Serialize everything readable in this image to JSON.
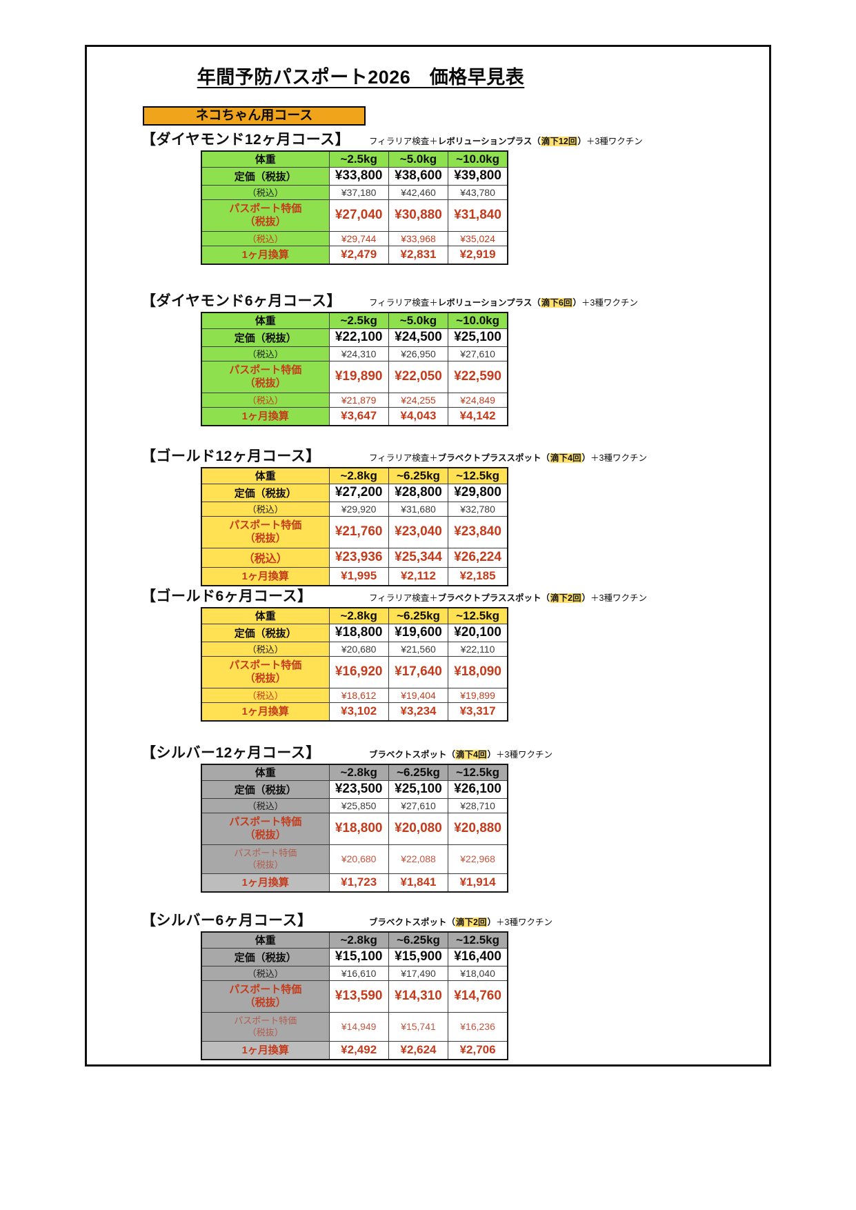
{
  "page": {
    "title": "年間予防パスポート2026　価格早見表",
    "banner": "ネコちゃん用コース"
  },
  "colors": {
    "green": "#8FE04F",
    "yellow": "#FFE153",
    "gray": "#A8A8A8",
    "gray_light": "#BDBDBD",
    "orange": "#F0A41C",
    "red": "#C43B1C",
    "muted_label": "#B05E4E",
    "muted_value": "#C4543E",
    "note_highlight": "#FFE170"
  },
  "labels": {
    "weight": "体重",
    "list_price": "定価（税抜）",
    "tax_included": "（税込）",
    "passport_line1": "パスポート特価",
    "passport_line2": "（税抜）",
    "monthly": "1ヶ月換算"
  },
  "tables": [
    {
      "heading": "【ダイヤモンド12ヶ月コース】",
      "theme": "green",
      "note": {
        "prefix": "フィラリア検査＋",
        "product": "レボリューションプラス",
        "open": "（",
        "highlight": "滴下12回",
        "close": "）",
        "suffix": "＋3種ワクチン"
      },
      "weights": [
        "~2.5kg",
        "~5.0kg",
        "~10.0kg"
      ],
      "list_price": [
        "¥33,800",
        "¥38,600",
        "¥39,800"
      ],
      "list_tax": [
        "¥37,180",
        "¥42,460",
        "¥43,780"
      ],
      "passport_price": [
        "¥27,040",
        "¥30,880",
        "¥31,840"
      ],
      "passport_tax_label": "（税込）",
      "passport_tax_style": "small",
      "passport_tax": [
        "¥29,744",
        "¥33,968",
        "¥35,024"
      ],
      "monthly": [
        "¥2,479",
        "¥2,831",
        "¥2,919"
      ]
    },
    {
      "heading": "【ダイヤモンド6ヶ月コース】",
      "theme": "green",
      "note": {
        "prefix": "フィラリア検査＋",
        "product": "レボリューションプラス",
        "open": "（",
        "highlight": "滴下6回",
        "close": "）",
        "suffix": "＋3種ワクチン"
      },
      "weights": [
        "~2.5kg",
        "~5.0kg",
        "~10.0kg"
      ],
      "list_price": [
        "¥22,100",
        "¥24,500",
        "¥25,100"
      ],
      "list_tax": [
        "¥24,310",
        "¥26,950",
        "¥27,610"
      ],
      "passport_price": [
        "¥19,890",
        "¥22,050",
        "¥22,590"
      ],
      "passport_tax_label": "（税込）",
      "passport_tax_style": "small",
      "passport_tax": [
        "¥21,879",
        "¥24,255",
        "¥24,849"
      ],
      "monthly": [
        "¥3,647",
        "¥4,043",
        "¥4,142"
      ]
    },
    {
      "heading": "【ゴールド12ヶ月コース】",
      "theme": "yellow",
      "note": {
        "prefix": "フィラリア検査＋",
        "product": "ブラベクトプラススポット",
        "open": "（",
        "highlight": "滴下4回",
        "close": "）",
        "suffix": "＋3種ワクチン"
      },
      "weights": [
        "~2.8kg",
        "~6.25kg",
        "~12.5kg"
      ],
      "list_price": [
        "¥27,200",
        "¥28,800",
        "¥29,800"
      ],
      "list_tax": [
        "¥29,920",
        "¥31,680",
        "¥32,780"
      ],
      "passport_price": [
        "¥21,760",
        "¥23,040",
        "¥23,840"
      ],
      "passport_tax_label": "（税込）",
      "passport_tax_style": "big",
      "passport_tax": [
        "¥23,936",
        "¥25,344",
        "¥26,224"
      ],
      "monthly": [
        "¥1,995",
        "¥2,112",
        "¥2,185"
      ]
    },
    {
      "heading": "【ゴールド6ヶ月コース】",
      "theme": "yellow",
      "note": {
        "prefix": "フィラリア検査＋",
        "product": "ブラベクトプラススポット",
        "open": "（",
        "highlight": "滴下2回",
        "close": "）",
        "suffix": "＋3種ワクチン"
      },
      "weights": [
        "~2.8kg",
        "~6.25kg",
        "~12.5kg"
      ],
      "list_price": [
        "¥18,800",
        "¥19,600",
        "¥20,100"
      ],
      "list_tax": [
        "¥20,680",
        "¥21,560",
        "¥22,110"
      ],
      "passport_price": [
        "¥16,920",
        "¥17,640",
        "¥18,090"
      ],
      "passport_tax_label": "（税込）",
      "passport_tax_style": "small",
      "passport_tax": [
        "¥18,612",
        "¥19,404",
        "¥19,899"
      ],
      "monthly": [
        "¥3,102",
        "¥3,234",
        "¥3,317"
      ]
    },
    {
      "heading": "【シルバー12ヶ月コース】",
      "theme": "gray",
      "note": {
        "prefix": "",
        "product": "ブラベクトスポット",
        "open": "（",
        "highlight": "滴下4回",
        "close": "）",
        "suffix": "＋3種ワクチン"
      },
      "weights": [
        "~2.8kg",
        "~6.25kg",
        "~12.5kg"
      ],
      "list_price": [
        "¥23,500",
        "¥25,100",
        "¥26,100"
      ],
      "list_tax": [
        "¥25,850",
        "¥27,610",
        "¥28,710"
      ],
      "passport_price": [
        "¥18,800",
        "¥20,080",
        "¥20,880"
      ],
      "passport_tax_label": "パスポート特価\n（税抜）",
      "passport_tax_style": "muted",
      "passport_tax": [
        "¥20,680",
        "¥22,088",
        "¥22,968"
      ],
      "monthly": [
        "¥1,723",
        "¥1,841",
        "¥1,914"
      ]
    },
    {
      "heading": "【シルバー6ヶ月コース】",
      "theme": "gray",
      "note": {
        "prefix": "",
        "product": "ブラベクトスポット",
        "open": "（",
        "highlight": "滴下2回",
        "close": "）",
        "suffix": "＋3種ワクチン"
      },
      "weights": [
        "~2.8kg",
        "~6.25kg",
        "~12.5kg"
      ],
      "list_price": [
        "¥15,100",
        "¥15,900",
        "¥16,400"
      ],
      "list_tax": [
        "¥16,610",
        "¥17,490",
        "¥18,040"
      ],
      "passport_price": [
        "¥13,590",
        "¥14,310",
        "¥14,760"
      ],
      "passport_tax_label": "パスポート特価\n（税抜）",
      "passport_tax_style": "muted",
      "passport_tax": [
        "¥14,949",
        "¥15,741",
        "¥16,236"
      ],
      "monthly": [
        "¥2,492",
        "¥2,624",
        "¥2,706"
      ]
    }
  ]
}
